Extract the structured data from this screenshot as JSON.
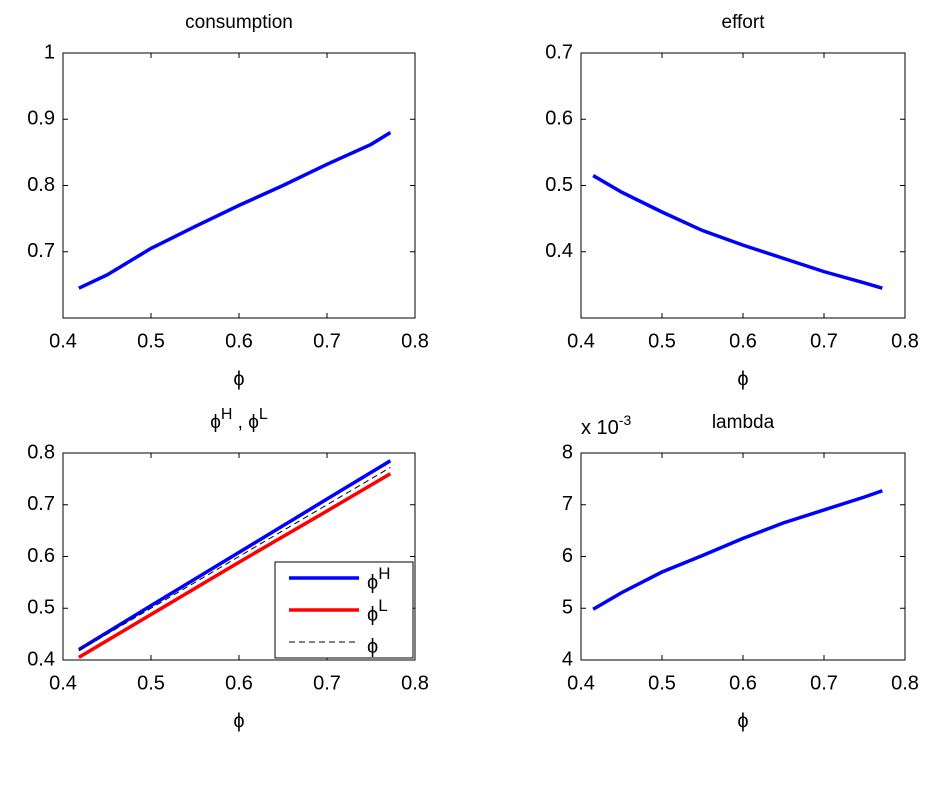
{
  "chart_data": [
    {
      "type": "line",
      "title": "consumption",
      "xlabel": "ϕ",
      "x": [
        0.418,
        0.45,
        0.5,
        0.55,
        0.6,
        0.65,
        0.7,
        0.75,
        0.772
      ],
      "series": [
        {
          "color": "#0000ff",
          "values": [
            0.645,
            0.665,
            0.705,
            0.738,
            0.77,
            0.8,
            0.832,
            0.862,
            0.88
          ]
        }
      ],
      "xlim": [
        0.4,
        0.8
      ],
      "xticks": [
        0.4,
        0.5,
        0.6,
        0.7,
        0.8
      ],
      "ylim": [
        0.6,
        1
      ],
      "yticks": [
        0.7,
        0.8,
        0.9,
        1
      ]
    },
    {
      "type": "line",
      "title": "effort",
      "xlabel": "ϕ",
      "x": [
        0.415,
        0.45,
        0.5,
        0.55,
        0.6,
        0.65,
        0.7,
        0.75,
        0.772
      ],
      "series": [
        {
          "color": "#0000ff",
          "values": [
            0.515,
            0.49,
            0.46,
            0.432,
            0.41,
            0.39,
            0.37,
            0.353,
            0.345
          ]
        }
      ],
      "xlim": [
        0.4,
        0.8
      ],
      "xticks": [
        0.4,
        0.5,
        0.6,
        0.7,
        0.8
      ],
      "ylim": [
        0.3,
        0.7
      ],
      "yticks": [
        0.4,
        0.5,
        0.6,
        0.7
      ]
    },
    {
      "type": "line",
      "title": [
        "ϕ",
        "H",
        " , ϕ",
        "L"
      ],
      "xlabel": "ϕ",
      "x": [
        0.418,
        0.5,
        0.6,
        0.7,
        0.772
      ],
      "series": [
        {
          "name": "ϕ",
          "name_sup": "H",
          "color": "#0000ff",
          "values": [
            0.42,
            0.505,
            0.608,
            0.711,
            0.785
          ]
        },
        {
          "name": "ϕ",
          "name_sup": "L",
          "color": "#ff0000",
          "values": [
            0.405,
            0.488,
            0.589,
            0.688,
            0.76
          ]
        },
        {
          "name": "ϕ",
          "color": "#000000",
          "dashed": true,
          "values": [
            0.418,
            0.5,
            0.6,
            0.7,
            0.772
          ]
        }
      ],
      "xlim": [
        0.4,
        0.8
      ],
      "xticks": [
        0.4,
        0.5,
        0.6,
        0.7,
        0.8
      ],
      "ylim": [
        0.4,
        0.8
      ],
      "yticks": [
        0.4,
        0.5,
        0.6,
        0.7,
        0.8
      ],
      "legend": "lower-right"
    },
    {
      "type": "line",
      "title": "lambda",
      "xlabel": "ϕ",
      "y_multiplier": [
        "x 10",
        "-3"
      ],
      "x": [
        0.415,
        0.45,
        0.5,
        0.55,
        0.6,
        0.65,
        0.7,
        0.75,
        0.772
      ],
      "series": [
        {
          "color": "#0000ff",
          "values": [
            4.98,
            5.3,
            5.7,
            6.02,
            6.35,
            6.65,
            6.9,
            7.15,
            7.27
          ]
        }
      ],
      "xlim": [
        0.4,
        0.8
      ],
      "xticks": [
        0.4,
        0.5,
        0.6,
        0.7,
        0.8
      ],
      "ylim": [
        4,
        8
      ],
      "yticks": [
        4,
        5,
        6,
        7,
        8
      ]
    }
  ]
}
